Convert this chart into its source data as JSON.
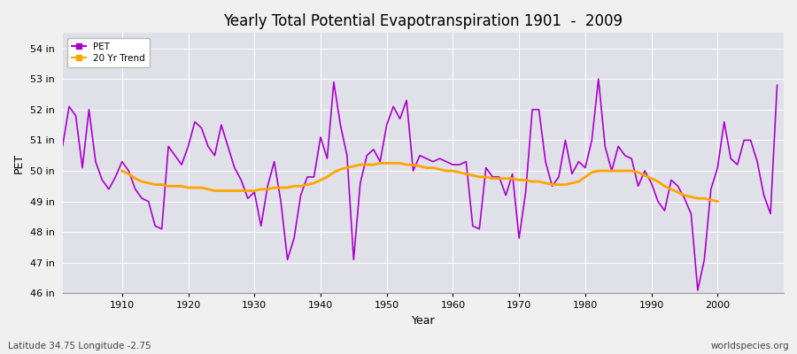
{
  "title": "Yearly Total Potential Evapotranspiration 1901  -  2009",
  "xlabel": "Year",
  "ylabel": "PET",
  "subtitle_left": "Latitude 34.75 Longitude -2.75",
  "subtitle_right": "worldspecies.org",
  "legend_pet": "PET",
  "legend_trend": "20 Yr Trend",
  "pet_color": "#AA00CC",
  "trend_color": "#FFA500",
  "bg_color": "#F0F0F0",
  "plot_bg_color": "#E0E0E8",
  "ylim": [
    46,
    54.5
  ],
  "yticks": [
    46,
    47,
    48,
    49,
    50,
    51,
    52,
    53,
    54
  ],
  "ytick_labels": [
    "46 in",
    "47 in",
    "48 in",
    "49 in",
    "50 in",
    "51 in",
    "52 in",
    "53 in",
    "54 in"
  ],
  "years": [
    1901,
    1902,
    1903,
    1904,
    1905,
    1906,
    1907,
    1908,
    1909,
    1910,
    1911,
    1912,
    1913,
    1914,
    1915,
    1916,
    1917,
    1918,
    1919,
    1920,
    1921,
    1922,
    1923,
    1924,
    1925,
    1926,
    1927,
    1928,
    1929,
    1930,
    1931,
    1932,
    1933,
    1934,
    1935,
    1936,
    1937,
    1938,
    1939,
    1940,
    1941,
    1942,
    1943,
    1944,
    1945,
    1946,
    1947,
    1948,
    1949,
    1950,
    1951,
    1952,
    1953,
    1954,
    1955,
    1956,
    1957,
    1958,
    1959,
    1960,
    1961,
    1962,
    1963,
    1964,
    1965,
    1966,
    1967,
    1968,
    1969,
    1970,
    1971,
    1972,
    1973,
    1974,
    1975,
    1976,
    1977,
    1978,
    1979,
    1980,
    1981,
    1982,
    1983,
    1984,
    1985,
    1986,
    1987,
    1988,
    1989,
    1990,
    1991,
    1992,
    1993,
    1994,
    1995,
    1996,
    1997,
    1998,
    1999,
    2000,
    2001,
    2002,
    2003,
    2004,
    2005,
    2006,
    2007,
    2008,
    2009
  ],
  "pet_values": [
    50.8,
    52.1,
    51.8,
    50.1,
    52.0,
    50.3,
    49.7,
    49.4,
    49.8,
    50.3,
    50.0,
    49.4,
    49.1,
    49.0,
    48.2,
    48.1,
    50.8,
    50.5,
    50.2,
    50.8,
    51.6,
    51.4,
    50.8,
    50.5,
    51.5,
    50.8,
    50.1,
    49.7,
    49.1,
    49.3,
    48.2,
    49.5,
    50.3,
    49.0,
    47.1,
    47.8,
    49.2,
    49.8,
    49.8,
    51.1,
    50.4,
    52.9,
    51.5,
    50.5,
    47.1,
    49.6,
    50.5,
    50.7,
    50.3,
    51.5,
    52.1,
    51.7,
    52.3,
    50.0,
    50.5,
    50.4,
    50.3,
    50.4,
    50.3,
    50.2,
    50.2,
    50.3,
    48.2,
    48.1,
    50.1,
    49.8,
    49.8,
    49.2,
    49.9,
    47.8,
    49.3,
    52.0,
    52.0,
    50.3,
    49.5,
    49.8,
    51.0,
    49.9,
    50.3,
    50.1,
    51.0,
    53.0,
    50.8,
    50.0,
    50.8,
    50.5,
    50.4,
    49.5,
    50.0,
    49.6,
    49.0,
    48.7,
    49.7,
    49.5,
    49.1,
    48.6,
    46.1,
    47.1,
    49.4,
    50.1,
    51.6,
    50.4,
    50.2,
    51.0,
    51.0,
    50.3,
    49.2,
    48.6,
    52.8
  ],
  "trend_values_x": [
    1910,
    1911,
    1912,
    1913,
    1914,
    1915,
    1916,
    1917,
    1918,
    1919,
    1920,
    1921,
    1922,
    1923,
    1924,
    1925,
    1926,
    1927,
    1928,
    1929,
    1930,
    1931,
    1932,
    1933,
    1934,
    1935,
    1936,
    1937,
    1938,
    1939,
    1940,
    1941,
    1942,
    1943,
    1944,
    1945,
    1946,
    1947,
    1948,
    1949,
    1950,
    1951,
    1952,
    1953,
    1954,
    1955,
    1956,
    1957,
    1958,
    1959,
    1960,
    1961,
    1962,
    1963,
    1964,
    1965,
    1966,
    1967,
    1968,
    1969,
    1970,
    1971,
    1972,
    1973,
    1974,
    1975,
    1976,
    1977,
    1978,
    1979,
    1980,
    1981,
    1982,
    1983,
    1984,
    1985,
    1986,
    1987,
    1988,
    1989,
    1990,
    1991,
    1992,
    1993,
    1994,
    1995,
    1996,
    1997,
    1998,
    1999,
    2000
  ],
  "trend_values_y": [
    50.0,
    49.9,
    49.75,
    49.65,
    49.6,
    49.55,
    49.55,
    49.5,
    49.5,
    49.5,
    49.45,
    49.45,
    49.45,
    49.4,
    49.35,
    49.35,
    49.35,
    49.35,
    49.35,
    49.35,
    49.35,
    49.4,
    49.4,
    49.45,
    49.45,
    49.45,
    49.5,
    49.5,
    49.55,
    49.6,
    49.7,
    49.8,
    49.95,
    50.05,
    50.1,
    50.15,
    50.2,
    50.2,
    50.2,
    50.25,
    50.25,
    50.25,
    50.25,
    50.2,
    50.2,
    50.15,
    50.1,
    50.1,
    50.05,
    50.0,
    50.0,
    49.95,
    49.9,
    49.85,
    49.8,
    49.8,
    49.75,
    49.75,
    49.75,
    49.75,
    49.7,
    49.7,
    49.65,
    49.65,
    49.6,
    49.55,
    49.55,
    49.55,
    49.6,
    49.65,
    49.8,
    49.95,
    50.0,
    50.0,
    50.0,
    50.0,
    50.0,
    50.0,
    49.95,
    49.85,
    49.75,
    49.65,
    49.5,
    49.4,
    49.3,
    49.2,
    49.15,
    49.1,
    49.1,
    49.05,
    49.0
  ]
}
